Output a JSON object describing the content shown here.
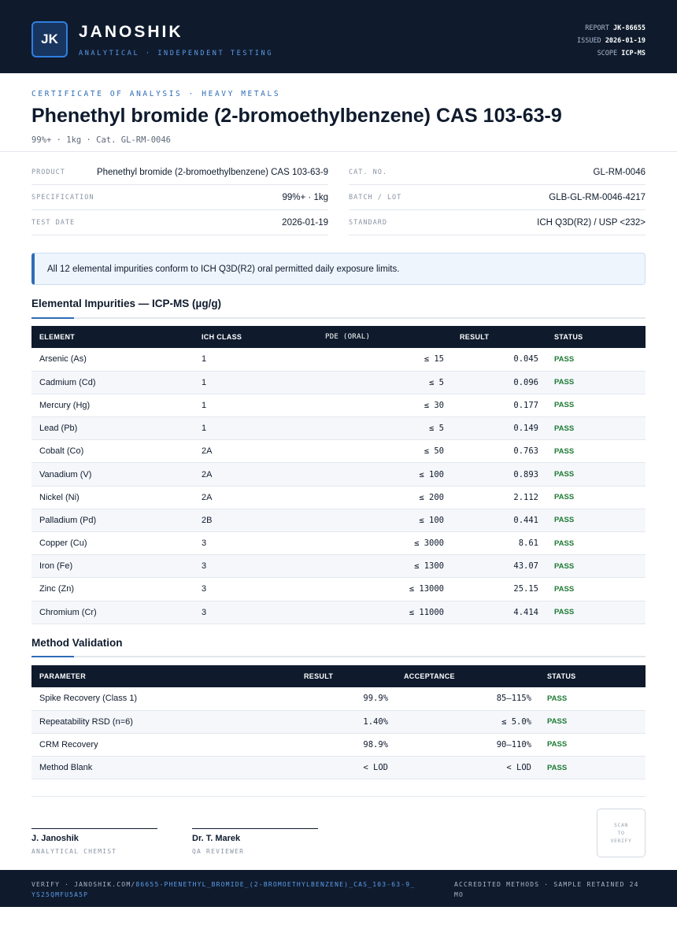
{
  "header": {
    "logo_initials": "JK",
    "brand": "JANOSHIK",
    "tagline": "ANALYTICAL · INDEPENDENT TESTING",
    "report_label": "REPORT",
    "report_value": "JK-86655",
    "issued_label": "ISSUED",
    "issued_value": "2026-01-19",
    "scope_label": "SCOPE",
    "scope_value": "ICP-MS"
  },
  "title_block": {
    "kicker": "CERTIFICATE OF ANALYSIS · HEAVY METALS",
    "title": "Phenethyl bromide (2-bromoethylbenzene) CAS 103-63-9",
    "subtitle": "99%+ · 1kg  ·  Cat. GL-RM-0046"
  },
  "info_left": [
    {
      "label": "PRODUCT",
      "value": "Phenethyl bromide (2-bromoethylbenzene) CAS 103-63-9"
    },
    {
      "label": "SPECIFICATION",
      "value": "99%+ · 1kg"
    },
    {
      "label": "TEST DATE",
      "value": "2026-01-19"
    }
  ],
  "info_right": [
    {
      "label": "CAT. NO.",
      "value": "GL-RM-0046"
    },
    {
      "label": "BATCH / LOT",
      "value": "GLB-GL-RM-0046-4217"
    },
    {
      "label": "STANDARD",
      "value": "ICH Q3D(R2) / USP <232>"
    }
  ],
  "notice": "All 12 elemental impurities conform to ICH Q3D(R2) oral permitted daily exposure limits.",
  "impurities": {
    "title": "Elemental Impurities — ICP-MS (µg/g)",
    "headers": [
      "ELEMENT",
      "ICH CLASS",
      "PDE (ORAL)",
      "RESULT",
      "STATUS"
    ],
    "rows": [
      {
        "element": "Arsenic (As)",
        "class": "1",
        "pde": "≤ 15",
        "result": "0.045",
        "status": "PASS"
      },
      {
        "element": "Cadmium (Cd)",
        "class": "1",
        "pde": "≤ 5",
        "result": "0.096",
        "status": "PASS"
      },
      {
        "element": "Mercury (Hg)",
        "class": "1",
        "pde": "≤ 30",
        "result": "0.177",
        "status": "PASS"
      },
      {
        "element": "Lead (Pb)",
        "class": "1",
        "pde": "≤ 5",
        "result": "0.149",
        "status": "PASS"
      },
      {
        "element": "Cobalt (Co)",
        "class": "2A",
        "pde": "≤ 50",
        "result": "0.763",
        "status": "PASS"
      },
      {
        "element": "Vanadium (V)",
        "class": "2A",
        "pde": "≤ 100",
        "result": "0.893",
        "status": "PASS"
      },
      {
        "element": "Nickel (Ni)",
        "class": "2A",
        "pde": "≤ 200",
        "result": "2.112",
        "status": "PASS"
      },
      {
        "element": "Palladium (Pd)",
        "class": "2B",
        "pde": "≤ 100",
        "result": "0.441",
        "status": "PASS"
      },
      {
        "element": "Copper (Cu)",
        "class": "3",
        "pde": "≤ 3000",
        "result": "8.61",
        "status": "PASS"
      },
      {
        "element": "Iron (Fe)",
        "class": "3",
        "pde": "≤ 1300",
        "result": "43.07",
        "status": "PASS"
      },
      {
        "element": "Zinc (Zn)",
        "class": "3",
        "pde": "≤ 13000",
        "result": "25.15",
        "status": "PASS"
      },
      {
        "element": "Chromium (Cr)",
        "class": "3",
        "pde": "≤ 11000",
        "result": "4.414",
        "status": "PASS"
      }
    ]
  },
  "validation": {
    "title": "Method Validation",
    "headers": [
      "PARAMETER",
      "RESULT",
      "ACCEPTANCE",
      "STATUS"
    ],
    "rows": [
      {
        "parameter": "Spike Recovery (Class 1)",
        "result": "99.9%",
        "acceptance": "85–115%",
        "status": "PASS"
      },
      {
        "parameter": "Repeatability RSD (n=6)",
        "result": "1.40%",
        "acceptance": "≤ 5.0%",
        "status": "PASS"
      },
      {
        "parameter": "CRM Recovery",
        "result": "98.9%",
        "acceptance": "90–110%",
        "status": "PASS"
      },
      {
        "parameter": "Method Blank",
        "result": "< LOD",
        "acceptance": "< LOD",
        "status": "PASS"
      }
    ]
  },
  "signatures": [
    {
      "name": "J. Janoshik",
      "role": "ANALYTICAL CHEMIST"
    },
    {
      "name": "Dr. T. Marek",
      "role": "QA REVIEWER"
    }
  ],
  "qr_text": "SCAN TO VERIFY",
  "footer": {
    "verify_prefix": "VERIFY · JANOSHIK.COM/",
    "verify_path": "86655-PHENETHYL_BROMIDE_(2-BROMOETHYLBENZENE)_CAS_103-63-9_YS25QMFU5A5P",
    "right": "ACCREDITED METHODS · SAMPLE RETAINED 24 MO"
  },
  "colors": {
    "navy": "#0f1b2d",
    "accent_blue": "#2f6cb8",
    "pass_green": "#1e7a34"
  }
}
